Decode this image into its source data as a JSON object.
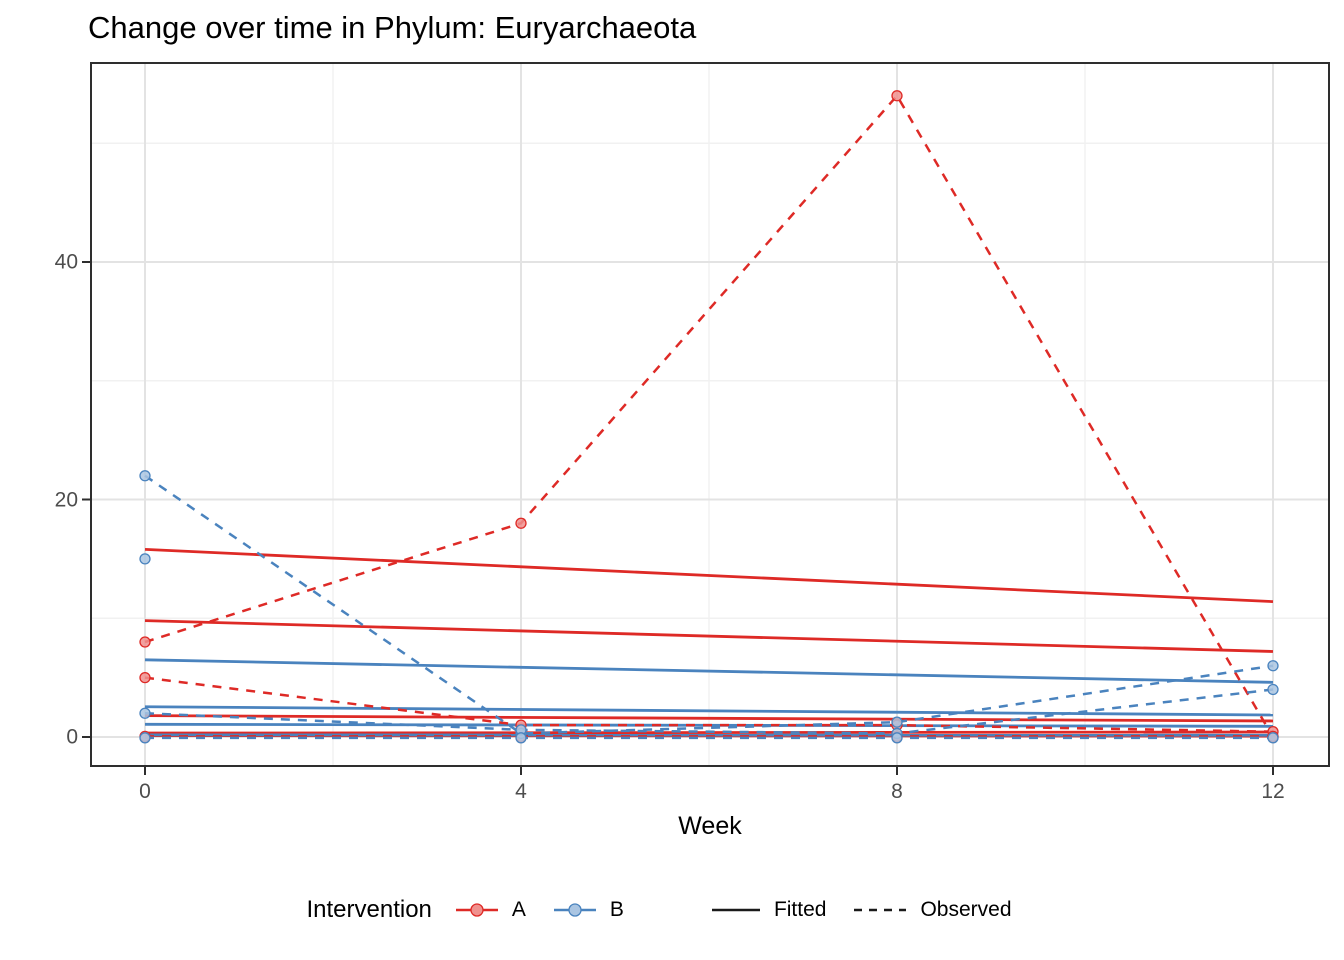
{
  "title": "Change over time in Phylum: Euryarchaeota",
  "x_axis": {
    "label": "Week",
    "major_ticks": [
      0,
      4,
      8,
      12
    ],
    "tick_labels": [
      "0",
      "4",
      "8",
      "12"
    ],
    "minor_ticks": [
      2,
      6,
      10
    ]
  },
  "y_axis": {
    "label": "",
    "major_ticks": [
      0,
      20,
      40
    ],
    "tick_labels": [
      "0",
      "20",
      "40"
    ],
    "minor_ticks": [
      10,
      30,
      50
    ]
  },
  "legend": {
    "title": "Intervention",
    "items": [
      {
        "label": "A",
        "color_key": "red"
      },
      {
        "label": "B",
        "color_key": "blue"
      }
    ],
    "linetypes": [
      {
        "label": "Fitted",
        "dash": "solid"
      },
      {
        "label": "Observed",
        "dash": "dashed"
      }
    ]
  },
  "colors": {
    "red": "#DE2A26",
    "blue": "#4A83BE",
    "red_fill": "#F0918E",
    "blue_fill": "#AAC5E2",
    "grid_major": "#E3E3E3",
    "grid_minor": "#F1F1F1",
    "panel_border": "#2e2e2e",
    "tick_mark": "#2e2e2e",
    "tick_text": "#4d4d4d",
    "legend_key": "#1a1a1a"
  },
  "chart_data": {
    "type": "line",
    "title": "Change over time in Phylum: Euryarchaeota",
    "xlabel": "Week",
    "ylabel": "",
    "x_values": [
      0,
      4,
      8,
      12
    ],
    "xlim": [
      -0.59,
      12.6
    ],
    "ylim": [
      -2.5,
      56.8
    ],
    "grid": true,
    "legend_position": "bottom",
    "series": [
      {
        "name": "A fitted 1",
        "group": "A",
        "style": "fitted",
        "color_key": "red",
        "markers": false,
        "points": [
          [
            0,
            15.8
          ],
          [
            12,
            11.4
          ]
        ]
      },
      {
        "name": "A fitted 2",
        "group": "A",
        "style": "fitted",
        "color_key": "red",
        "markers": false,
        "points": [
          [
            0,
            9.8
          ],
          [
            12,
            7.2
          ]
        ]
      },
      {
        "name": "A fitted 3",
        "group": "A",
        "style": "fitted",
        "color_key": "red",
        "markers": false,
        "points": [
          [
            0,
            1.8
          ],
          [
            12,
            1.35
          ]
        ]
      },
      {
        "name": "A fitted 4",
        "group": "A",
        "style": "fitted",
        "color_key": "red",
        "markers": false,
        "points": [
          [
            0,
            0.33
          ],
          [
            12,
            0.42
          ]
        ]
      },
      {
        "name": "A fitted 5",
        "group": "A",
        "style": "fitted",
        "color_key": "red",
        "markers": false,
        "points": [
          [
            0,
            0.12
          ],
          [
            12,
            0.08
          ]
        ]
      },
      {
        "name": "B fitted 1",
        "group": "B",
        "style": "fitted",
        "color_key": "blue",
        "markers": false,
        "points": [
          [
            0,
            6.5
          ],
          [
            12,
            4.6
          ]
        ]
      },
      {
        "name": "B fitted 2",
        "group": "B",
        "style": "fitted",
        "color_key": "blue",
        "markers": false,
        "points": [
          [
            0,
            2.55
          ],
          [
            12,
            1.85
          ]
        ]
      },
      {
        "name": "B fitted 3",
        "group": "B",
        "style": "fitted",
        "color_key": "blue",
        "markers": false,
        "points": [
          [
            0,
            1.07
          ],
          [
            12,
            0.9
          ]
        ]
      },
      {
        "name": "B fitted 4",
        "group": "B",
        "style": "fitted",
        "color_key": "blue",
        "markers": false,
        "points": [
          [
            0,
            0.18
          ],
          [
            12,
            0.15
          ]
        ]
      },
      {
        "name": "A observed 1",
        "group": "A",
        "style": "observed",
        "color_key": "red",
        "markers": true,
        "points": [
          [
            0,
            8
          ],
          [
            4,
            18
          ],
          [
            8,
            54
          ],
          [
            12,
            0
          ]
        ]
      },
      {
        "name": "A observed 2",
        "group": "A",
        "style": "observed",
        "color_key": "red",
        "markers": true,
        "points": [
          [
            0,
            5
          ],
          [
            4,
            1
          ],
          [
            8,
            1
          ],
          [
            12,
            0.45
          ]
        ]
      },
      {
        "name": "A observed 3",
        "group": "A",
        "style": "observed",
        "color_key": "red",
        "markers": true,
        "points": [
          [
            0,
            0.05
          ],
          [
            4,
            0.05
          ],
          [
            8,
            0.05
          ],
          [
            12,
            0.05
          ]
        ]
      },
      {
        "name": "B observed 1",
        "group": "B",
        "style": "observed",
        "color_key": "blue",
        "markers": true,
        "points": [
          [
            0,
            22
          ],
          [
            4,
            0.3
          ],
          [
            8,
            1.25
          ],
          [
            12,
            6
          ]
        ]
      },
      {
        "name": "B observed 2",
        "group": "B",
        "style": "observed",
        "color_key": "blue",
        "markers": true,
        "points": [
          [
            0,
            2
          ],
          [
            4,
            0.6
          ],
          [
            8,
            0.3
          ],
          [
            12,
            4
          ]
        ]
      },
      {
        "name": "B observed 3",
        "group": "B",
        "style": "observed",
        "color_key": "blue",
        "markers": true,
        "points": [
          [
            0,
            -0.07
          ],
          [
            4,
            -0.07
          ],
          [
            8,
            -0.07
          ],
          [
            12,
            -0.07
          ]
        ]
      },
      {
        "name": "B observed isolated point",
        "group": "B",
        "style": "observed",
        "color_key": "blue",
        "markers": true,
        "line": false,
        "points": [
          [
            0,
            15
          ]
        ]
      }
    ]
  }
}
